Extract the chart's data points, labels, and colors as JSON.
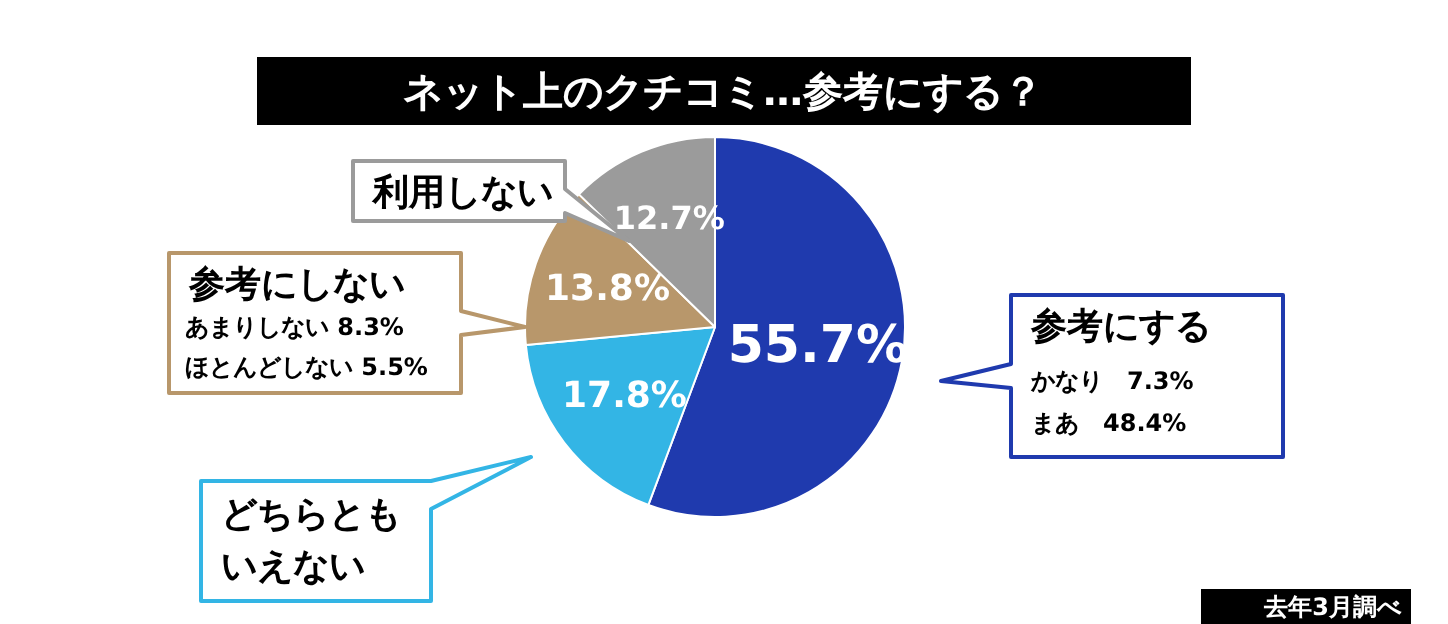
{
  "chart_data": {
    "type": "pie",
    "title": "ネット上のクチコミ…参考にする？",
    "categories": [
      "参考にする",
      "どちらともいえない",
      "参考にしない",
      "利用しない"
    ],
    "values": [
      55.7,
      17.8,
      13.8,
      12.7
    ],
    "colors": [
      "#1f3aae",
      "#33b5e5",
      "#b8976b",
      "#9b9b9b"
    ],
    "value_labels": [
      "55.7%",
      "17.8%",
      "13.8%",
      "12.7%"
    ],
    "annotations": [
      "かなり　7.3%",
      "まあ　48.4%",
      "あまりしない 8.3%",
      "ほとんどしない 5.5%",
      "去年3月調べ"
    ]
  }
}
